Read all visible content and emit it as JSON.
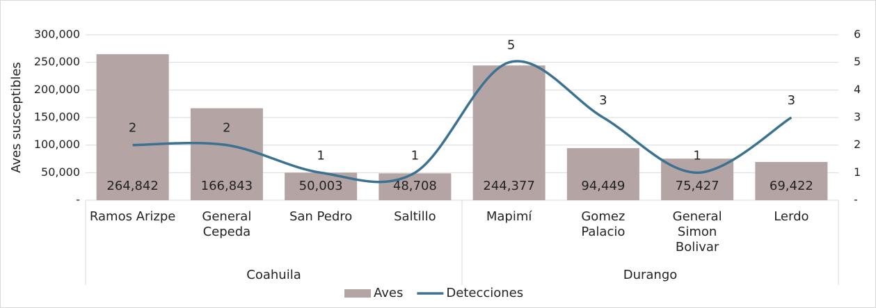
{
  "chart_data": {
    "type": "bar-line",
    "y_label": "Aves susceptibles",
    "categories": [
      "Ramos Arizpe",
      "General\nCepeda",
      "San Pedro",
      "Saltillo",
      "Mapimí",
      "Gomez\nPalacio",
      "General\nSimon\nBolivar",
      "Lerdo"
    ],
    "groups": [
      {
        "name": "Coahuila",
        "count": 4
      },
      {
        "name": "Durango",
        "count": 4
      }
    ],
    "series": [
      {
        "name": "Aves",
        "type": "bar",
        "color": "#b5a4a4",
        "axis": "y",
        "values": [
          264842,
          166843,
          50003,
          48708,
          244377,
          94449,
          75427,
          69422
        ],
        "value_labels": [
          "264,842",
          "166,843",
          "50,003",
          "48,708",
          "244,377",
          "94,449",
          "75,427",
          "69,422"
        ]
      },
      {
        "name": "Detecciones",
        "type": "line",
        "color": "#3b7191",
        "axis": "y2",
        "values": [
          2,
          2,
          1,
          1,
          5,
          3,
          1,
          3
        ]
      }
    ],
    "ylim": [
      0,
      300000
    ],
    "yticks": [
      {
        "value": 0,
        "label": "-"
      },
      {
        "value": 50000,
        "label": "50,000"
      },
      {
        "value": 100000,
        "label": "100,000"
      },
      {
        "value": 150000,
        "label": "150,000"
      },
      {
        "value": 200000,
        "label": "200,000"
      },
      {
        "value": 250000,
        "label": "250,000"
      },
      {
        "value": 300000,
        "label": "300,000"
      }
    ],
    "y2lim": [
      0,
      6
    ],
    "y2ticks": [
      {
        "value": 0,
        "label": "-"
      },
      1,
      2,
      3,
      4,
      5,
      6
    ],
    "grid": true,
    "legend": "bottom"
  }
}
